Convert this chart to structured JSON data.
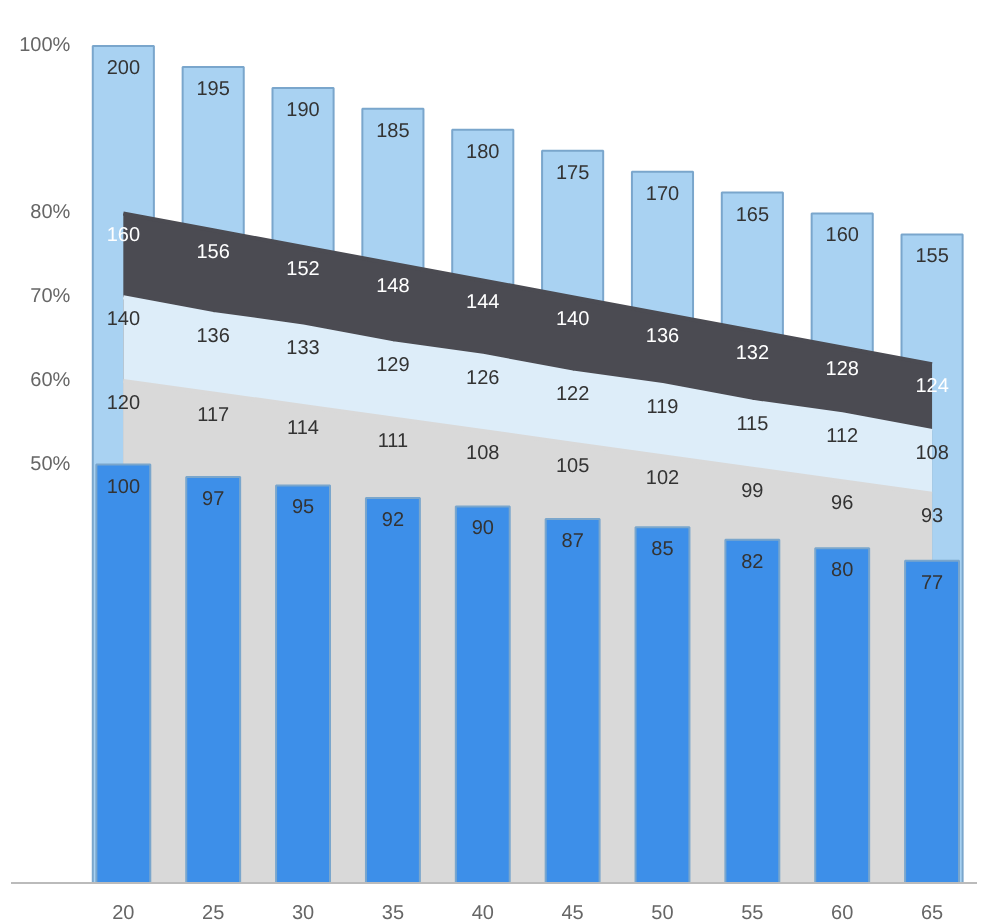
{
  "chart_data": {
    "type": "bar",
    "categories": [
      "20",
      "25",
      "30",
      "35",
      "40",
      "45",
      "50",
      "55",
      "60",
      "65"
    ],
    "series": [
      {
        "type": "bar",
        "color": "#a9d2f2",
        "values": [
          200,
          195,
          190,
          185,
          180,
          175,
          170,
          165,
          160,
          155
        ]
      },
      {
        "type": "area",
        "color": "#4b4b52",
        "values": [
          160,
          156,
          152,
          148,
          144,
          140,
          136,
          132,
          128,
          124
        ]
      },
      {
        "type": "area",
        "color": "#ddedf9",
        "values": [
          140,
          136,
          133,
          129,
          126,
          122,
          119,
          115,
          112,
          108
        ]
      },
      {
        "type": "area",
        "color": "#d9d9d9",
        "values": [
          120,
          117,
          114,
          111,
          108,
          105,
          102,
          99,
          96,
          93
        ]
      },
      {
        "color": "#3d8fe9",
        "values": [
          100,
          97,
          95,
          92,
          90,
          87,
          85,
          82,
          80,
          77
        ]
      }
    ],
    "tick_labels": "x",
    "annotations": [
      {
        "text": "100%",
        "x": "20",
        "y": 200
      },
      {
        "text": "80%",
        "x": "20",
        "y": 160
      },
      {
        "text": "70%",
        "x": "20",
        "y": 140
      },
      {
        "text": "60%",
        "x": "20",
        "y": 120
      },
      {
        "text": "50%",
        "x": "20",
        "y": 100
      }
    ],
    "data_labels": true
  }
}
